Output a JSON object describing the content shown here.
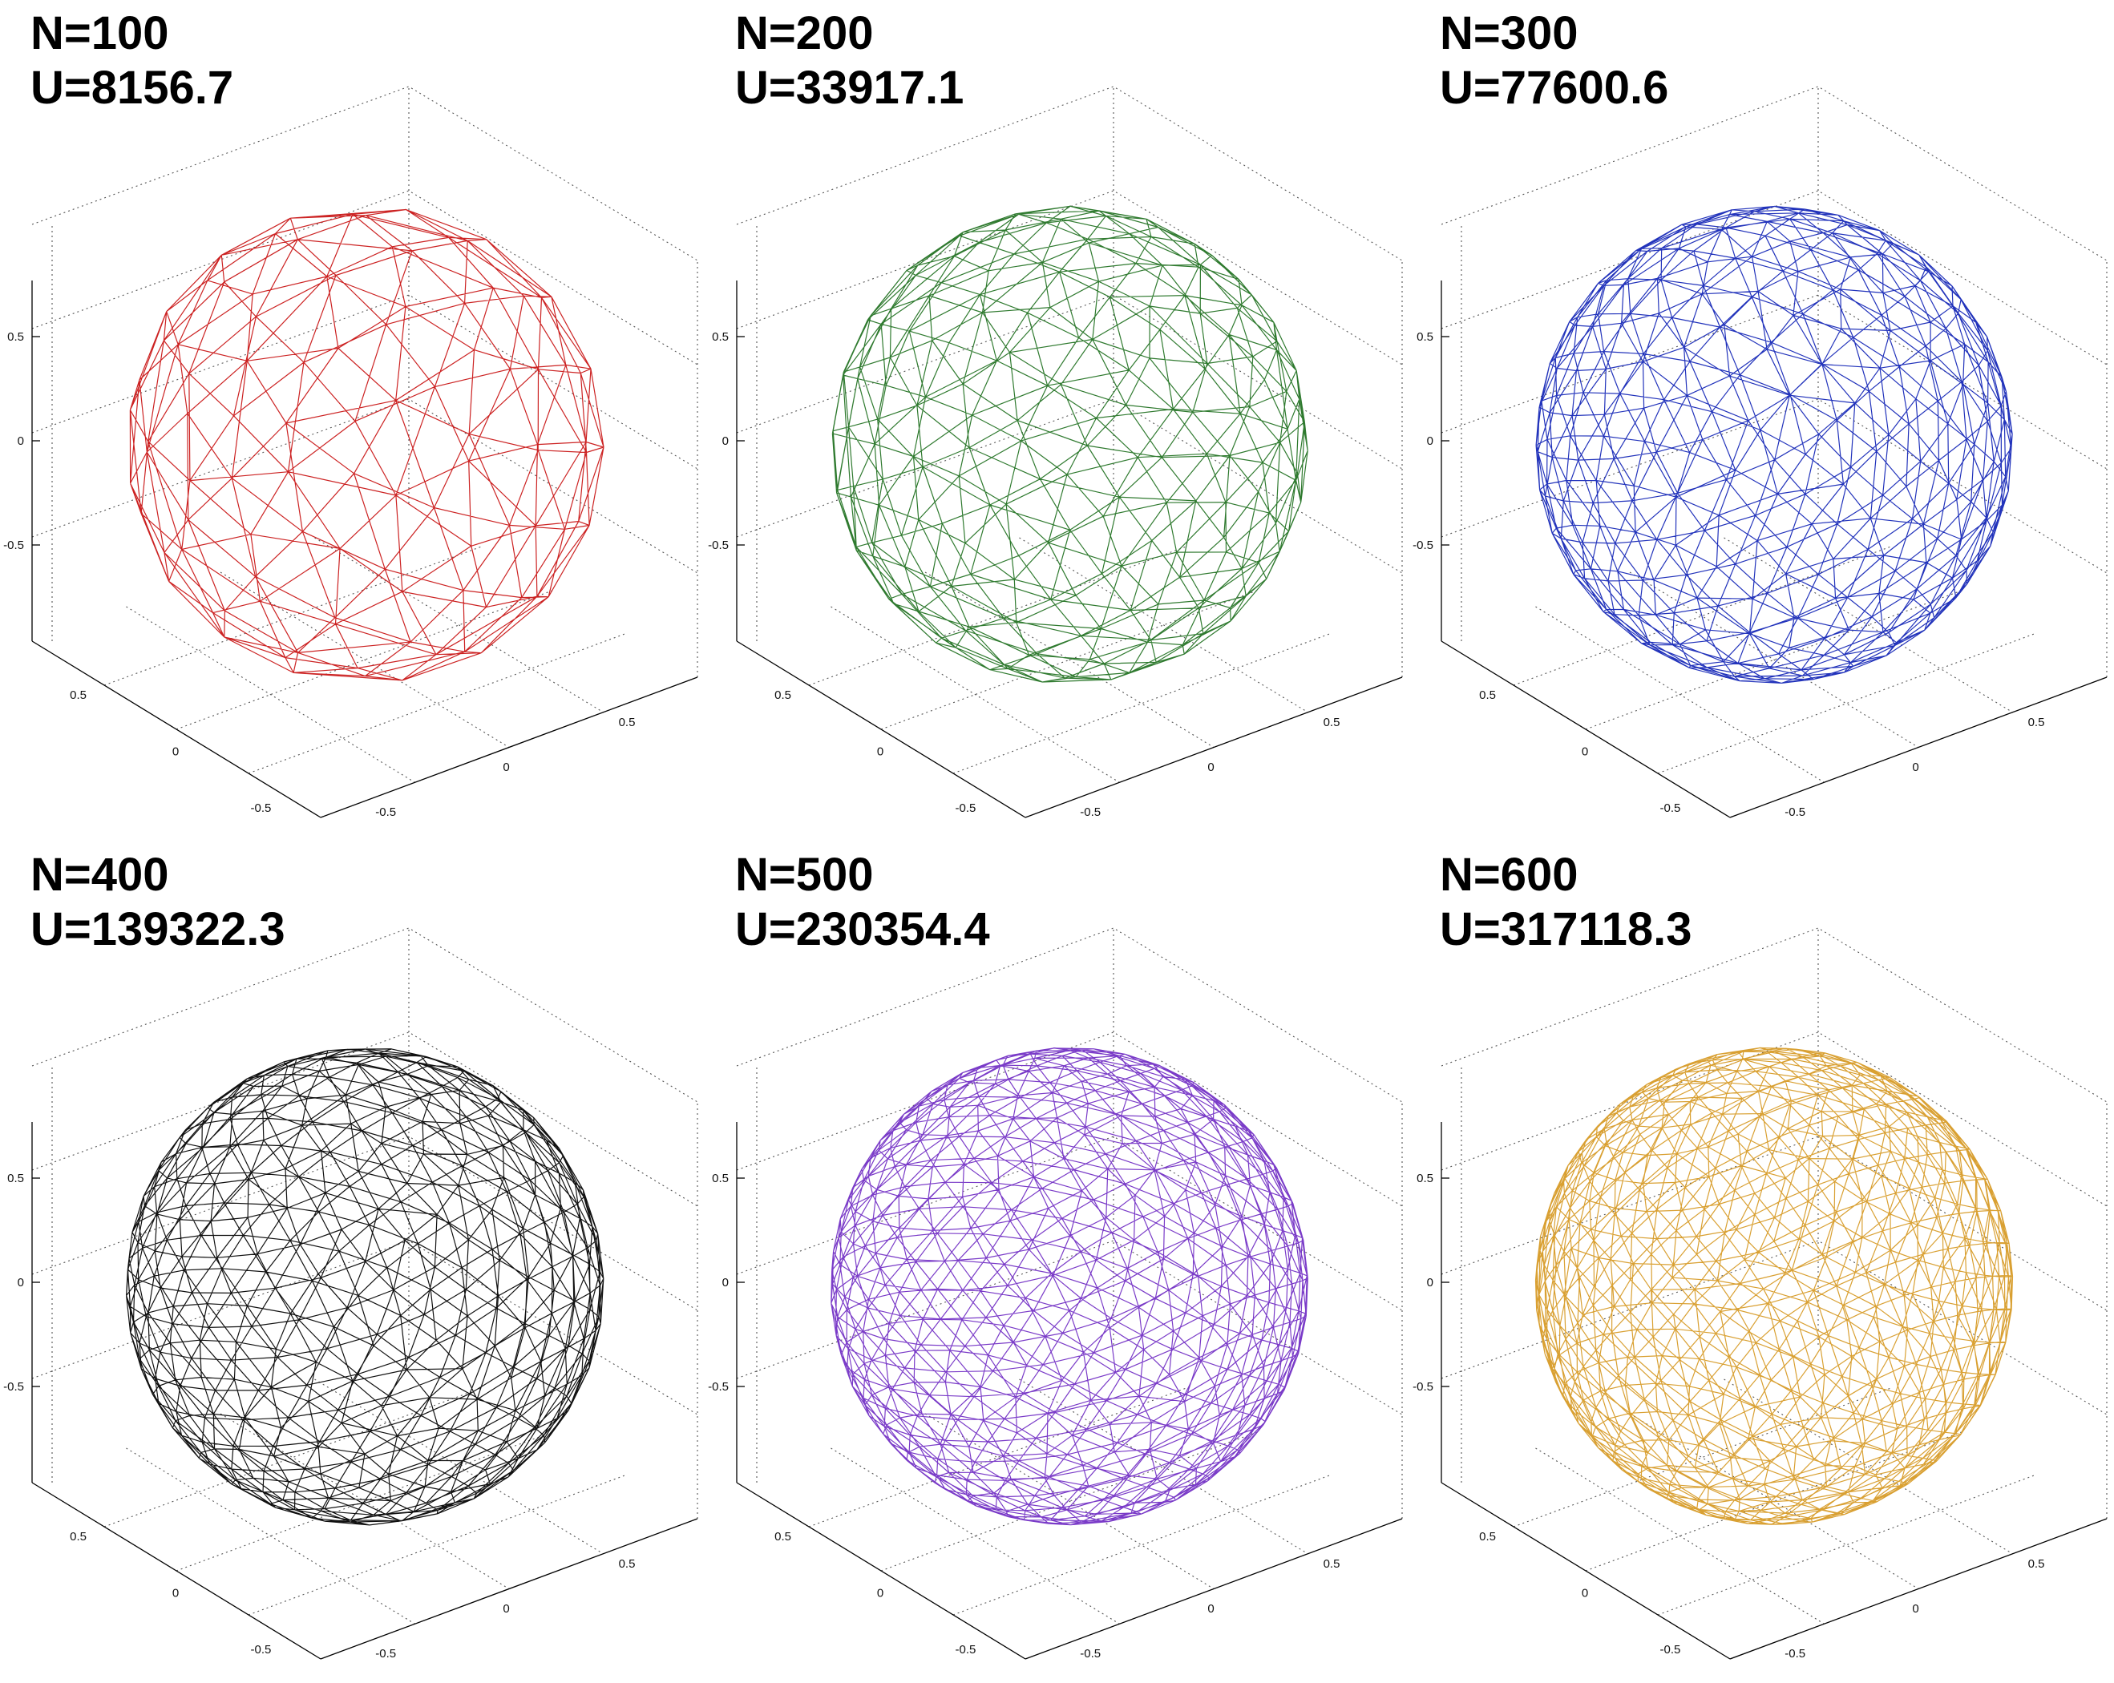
{
  "chart_data": [
    {
      "type": "wireframe-sphere",
      "N": 100,
      "U": 8156.7,
      "title_n": "N=100",
      "title_u": "U=8156.7",
      "color": "#cc2222",
      "zticks": [
        "0.5",
        "0",
        "-0.5"
      ],
      "xticks": [
        "0.5",
        "0",
        "-0.5"
      ],
      "yticks": [
        "0.5",
        "0",
        "-0.5"
      ],
      "xlim": [
        -1,
        1
      ],
      "ylim": [
        -1,
        1
      ],
      "zlim": [
        -1,
        1
      ],
      "grid": true
    },
    {
      "type": "wireframe-sphere",
      "N": 200,
      "U": 33917.1,
      "title_n": "N=200",
      "title_u": "U=33917.1",
      "color": "#2f7a2f",
      "zticks": [
        "0.5",
        "0",
        "-0.5"
      ],
      "xticks": [
        "0.5",
        "0",
        "-0.5"
      ],
      "yticks": [
        "0.5",
        "0",
        "-0.5"
      ],
      "xlim": [
        -1,
        1
      ],
      "ylim": [
        -1,
        1
      ],
      "zlim": [
        -1,
        1
      ],
      "grid": true
    },
    {
      "type": "wireframe-sphere",
      "N": 300,
      "U": 77600.6,
      "title_n": "N=300",
      "title_u": "U=77600.6",
      "color": "#2233bb",
      "zticks": [
        "0.5",
        "0",
        "-0.5"
      ],
      "xticks": [
        "0.5",
        "0",
        "-0.5"
      ],
      "yticks": [
        "0.5",
        "0",
        "-0.5"
      ],
      "xlim": [
        -1,
        1
      ],
      "ylim": [
        -1,
        1
      ],
      "zlim": [
        -1,
        1
      ],
      "grid": true
    },
    {
      "type": "wireframe-sphere",
      "N": 400,
      "U": 139322.3,
      "title_n": "N=400",
      "title_u": "U=139322.3",
      "color": "#111111",
      "zticks": [
        "0.5",
        "0",
        "-0.5"
      ],
      "xticks": [
        "0.5",
        "0",
        "-0.5"
      ],
      "yticks": [
        "0.5",
        "0",
        "-0.5"
      ],
      "xlim": [
        -1,
        1
      ],
      "ylim": [
        -1,
        1
      ],
      "zlim": [
        -1,
        1
      ],
      "grid": true
    },
    {
      "type": "wireframe-sphere",
      "N": 500,
      "U": 230354.4,
      "title_n": "N=500",
      "title_u": "U=230354.4",
      "color": "#7a3bc8",
      "zticks": [
        "0.5",
        "0",
        "-0.5"
      ],
      "xticks": [
        "0.5",
        "0",
        "-0.5"
      ],
      "yticks": [
        "0.5",
        "0",
        "-0.5"
      ],
      "xlim": [
        -1,
        1
      ],
      "ylim": [
        -1,
        1
      ],
      "zlim": [
        -1,
        1
      ],
      "grid": true
    },
    {
      "type": "wireframe-sphere",
      "N": 600,
      "U": 317118.3,
      "title_n": "N=600",
      "title_u": "U=317118.3",
      "color": "#d9a032",
      "zticks": [
        "0.5",
        "0",
        "-0.5"
      ],
      "xticks": [
        "0.5",
        "0",
        "-0.5"
      ],
      "yticks": [
        "0.5",
        "0",
        "-0.5"
      ],
      "xlim": [
        -1,
        1
      ],
      "ylim": [
        -1,
        1
      ],
      "zlim": [
        -1,
        1
      ],
      "grid": true
    }
  ]
}
